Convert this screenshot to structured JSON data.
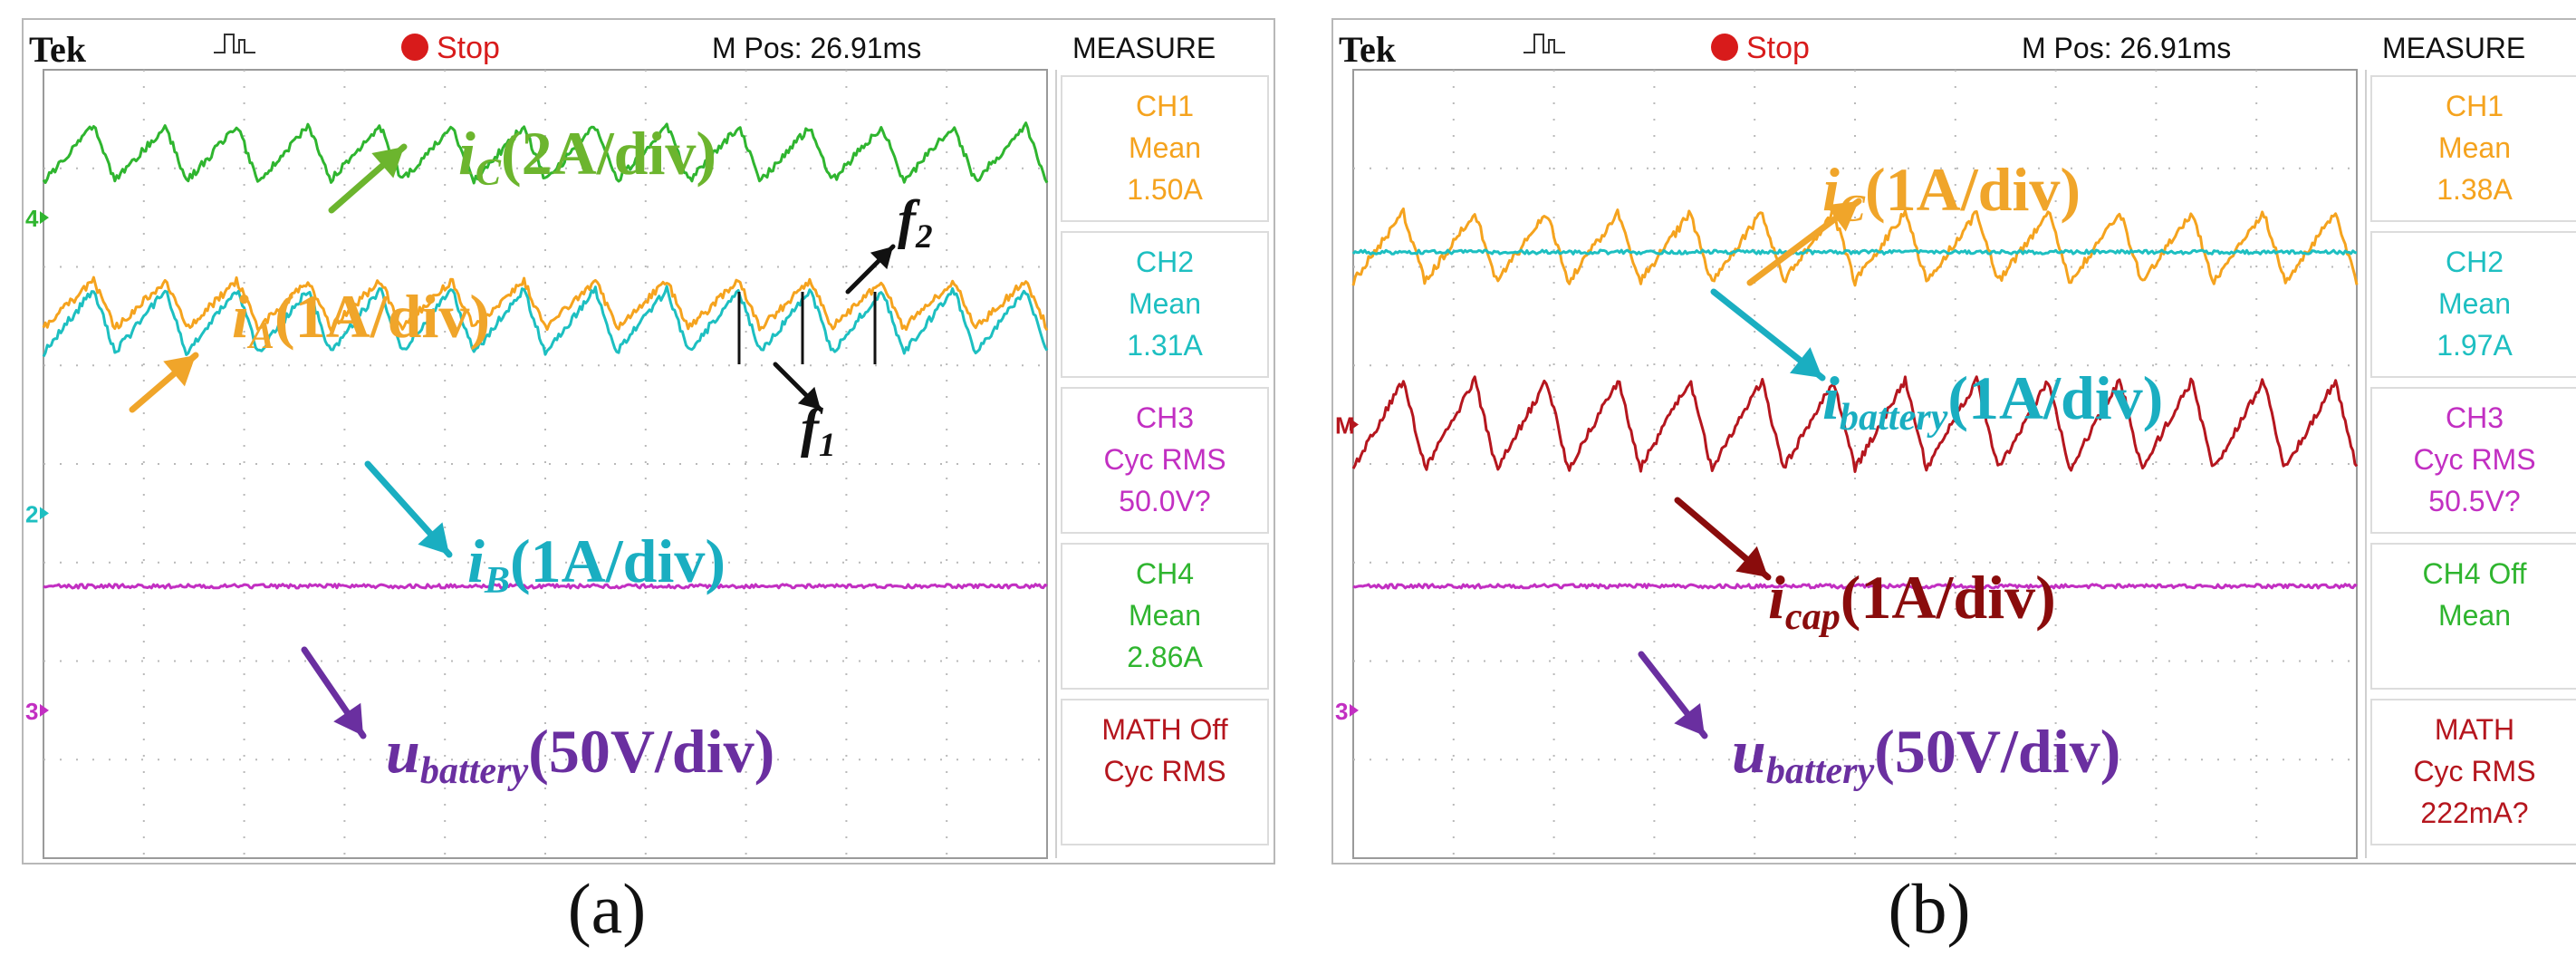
{
  "chart_data": [
    {
      "type": "line",
      "id": "a",
      "caption": "(a)",
      "header": {
        "brand": "Tek",
        "status": "Stop",
        "mpos": "M Pos: 26.91ms",
        "measure_title": "MEASURE"
      },
      "colors": {
        "ch1": "#f5a31e",
        "ch2": "#1dbfc1",
        "ch3": "#c22fc2",
        "ch4": "#2fb52f",
        "math": "#b5161e",
        "arrow_ubat": "#6a2fa0"
      },
      "channel_markers": [
        {
          "label": "4",
          "y": 2.5,
          "color": "#2fb52f"
        },
        {
          "label": "2",
          "y": -0.5,
          "color": "#1dbfc1"
        },
        {
          "label": "3",
          "y": -2.5,
          "color": "#c22fc2"
        }
      ],
      "measurements": [
        {
          "lines": [
            "CH1",
            "Mean",
            "1.50A"
          ],
          "color": "#f5a31e"
        },
        {
          "lines": [
            "CH2",
            "Mean",
            "1.31A"
          ],
          "color": "#1dbfc1"
        },
        {
          "lines": [
            "CH3",
            "Cyc RMS",
            "50.0V?"
          ],
          "color": "#c22fc2"
        },
        {
          "lines": [
            "CH4",
            "Mean",
            "2.86A"
          ],
          "color": "#2fb52f"
        },
        {
          "lines": [
            "MATH Off",
            "Cyc RMS"
          ],
          "color": "#b5161e"
        }
      ],
      "series": [
        {
          "name": "iC",
          "color": "#2fb52f",
          "level": 3.15,
          "amp": 0.28,
          "periods": 14
        },
        {
          "name": "iA",
          "color": "#f5a31e",
          "level": 1.62,
          "amp": 0.24,
          "periods": 14
        },
        {
          "name": "iB",
          "color": "#1dbfc1",
          "level": 1.45,
          "amp": 0.32,
          "periods": 14
        },
        {
          "name": "ubattery",
          "color": "#c22fc2",
          "level": -1.2,
          "amp": 0.03,
          "periods": 0
        }
      ],
      "annotations": [
        {
          "main": "i",
          "sub": "C",
          "rest": "(2A/div)",
          "color": "#6cb52e"
        },
        {
          "main": "i",
          "sub": "A",
          "rest": "(1A/div)",
          "color": "#f0a52a"
        },
        {
          "main": "i",
          "sub": "B",
          "rest": "(1A/div)",
          "color": "#1aaec1"
        },
        {
          "main": "u",
          "sub": "battery",
          "rest": "(50V/div)",
          "color": "#6a2fa0"
        }
      ],
      "freq_labels": [
        {
          "main": "f",
          "sub": "2"
        },
        {
          "main": "f",
          "sub": "1"
        }
      ],
      "xlim": [
        0,
        10
      ],
      "ylim": [
        -4,
        4
      ]
    },
    {
      "type": "line",
      "id": "b",
      "caption": "(b)",
      "header": {
        "brand": "Tek",
        "status": "Stop",
        "mpos": "M Pos: 26.91ms",
        "measure_title": "MEASURE"
      },
      "colors": {
        "ch1": "#f5a31e",
        "ch2": "#1dbfc1",
        "ch3": "#c22fc2",
        "ch4": "#2fb52f",
        "math": "#b5161e",
        "arrow_ubat": "#6a2fa0"
      },
      "channel_markers": [
        {
          "label": "M",
          "y": 0.4,
          "color": "#b5161e"
        },
        {
          "label": "3",
          "y": -2.5,
          "color": "#c22fc2"
        }
      ],
      "measurements": [
        {
          "lines": [
            "CH1",
            "Mean",
            "1.38A"
          ],
          "color": "#f5a31e"
        },
        {
          "lines": [
            "CH2",
            "Mean",
            "1.97A"
          ],
          "color": "#1dbfc1"
        },
        {
          "lines": [
            "CH3",
            "Cyc RMS",
            "50.5V?"
          ],
          "color": "#c22fc2"
        },
        {
          "lines": [
            "CH4 Off",
            "Mean"
          ],
          "color": "#2fb52f"
        },
        {
          "lines": [
            "MATH",
            "Cyc RMS",
            "222mA?"
          ],
          "color": "#b5161e"
        }
      ],
      "series": [
        {
          "name": "iC",
          "color": "#f5a31e",
          "level": 2.2,
          "amp": 0.35,
          "periods": 14
        },
        {
          "name": "ibattery",
          "color": "#1dbfc1",
          "level": 2.15,
          "amp": 0.05,
          "periods": 0
        },
        {
          "name": "icap",
          "color": "#b5161e",
          "level": 0.4,
          "amp": 0.45,
          "periods": 14
        },
        {
          "name": "ubattery",
          "color": "#c22fc2",
          "level": -1.2,
          "amp": 0.03,
          "periods": 0
        }
      ],
      "annotations": [
        {
          "main": "i",
          "sub": "C",
          "rest": "(1A/div)",
          "color": "#f0a52a"
        },
        {
          "main": "i",
          "sub": "battery",
          "rest": "(1A/div)",
          "color": "#1aaec1"
        },
        {
          "main": "i",
          "sub": "cap",
          "rest": "(1A/div)",
          "color": "#8a0c0c"
        },
        {
          "main": "u",
          "sub": "battery",
          "rest": "(50V/div)",
          "color": "#6a2fa0"
        }
      ],
      "freq_labels": [],
      "xlim": [
        0,
        10
      ],
      "ylim": [
        -4,
        4
      ]
    }
  ]
}
